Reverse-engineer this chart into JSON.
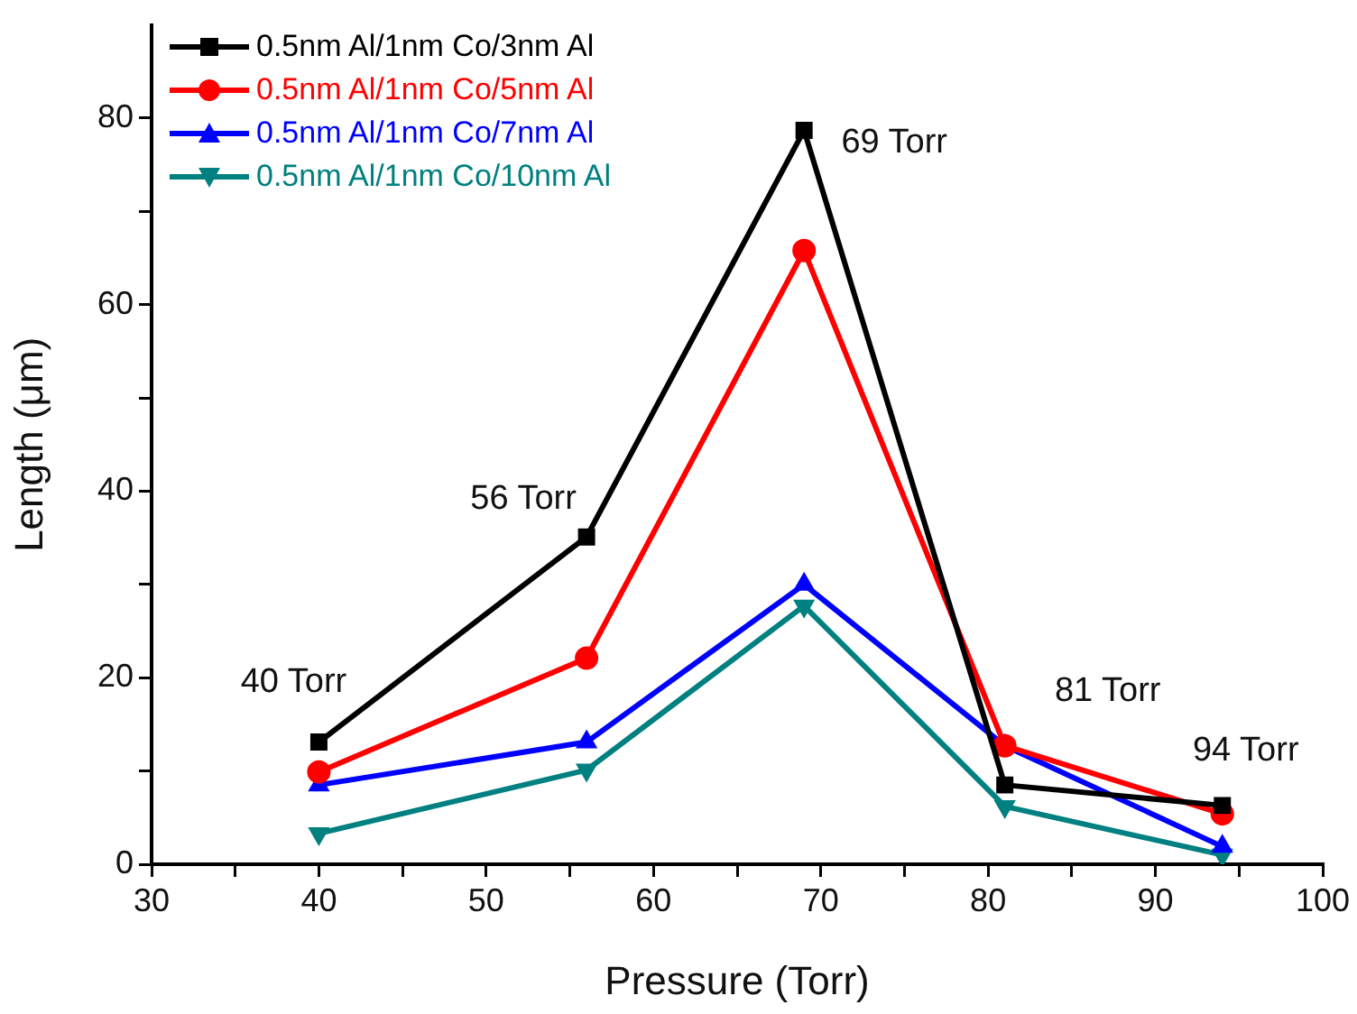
{
  "chart_data": {
    "type": "line",
    "xlabel": "Pressure (Torr)",
    "ylabel": "Length (μm)",
    "x": [
      40,
      56,
      69,
      81,
      94
    ],
    "series": [
      {
        "name": "0.5nm Al/1nm Co/3nm Al",
        "color": "#000000",
        "marker": "square",
        "values": [
          13.1,
          35.1,
          78.7,
          8.5,
          6.3
        ]
      },
      {
        "name": "0.5nm Al/1nm Co/5nm Al",
        "color": "#ff0000",
        "marker": "circle",
        "values": [
          9.9,
          22.1,
          65.8,
          12.7,
          5.4
        ]
      },
      {
        "name": "0.5nm Al/1nm Co/7nm Al",
        "color": "#0000ff",
        "marker": "triangle",
        "values": [
          8.5,
          13.1,
          30.0,
          12.7,
          1.9
        ]
      },
      {
        "name": "0.5nm Al/1nm Co/10nm Al",
        "color": "#008080",
        "marker": "triangle-down",
        "values": [
          3.3,
          10.1,
          27.7,
          6.2,
          1.0
        ]
      }
    ],
    "xlim": [
      30,
      100
    ],
    "xticks": [
      30,
      {
        "value": 35,
        "label": null
      },
      40,
      {
        "value": 45,
        "label": null
      },
      50,
      {
        "value": 55,
        "label": null
      },
      60,
      {
        "value": 65,
        "label": null
      },
      70,
      {
        "value": 75,
        "label": null
      },
      80,
      {
        "value": 85,
        "label": null
      },
      90,
      {
        "value": 95,
        "label": null
      },
      100
    ],
    "ylim": [
      0,
      90
    ],
    "yticks": [
      0,
      {
        "value": 10,
        "label": null
      },
      20,
      {
        "value": 30,
        "label": null
      },
      40,
      {
        "value": 50,
        "label": null
      },
      60,
      {
        "value": 70,
        "label": null
      },
      80
    ],
    "grid": false,
    "legend": "top left",
    "line_style": "solid",
    "annotations": [
      {
        "text": "40 Torr",
        "x": 40,
        "y": 13.1
      },
      {
        "text": "56 Torr",
        "x": 56,
        "y": 35.1
      },
      {
        "text": "69 Torr",
        "x": 69,
        "y": 78.7
      },
      {
        "text": "81 Torr",
        "x": 81,
        "y": 8.5
      },
      {
        "text": "94 Torr",
        "x": 94,
        "y": 6.3
      }
    ]
  }
}
